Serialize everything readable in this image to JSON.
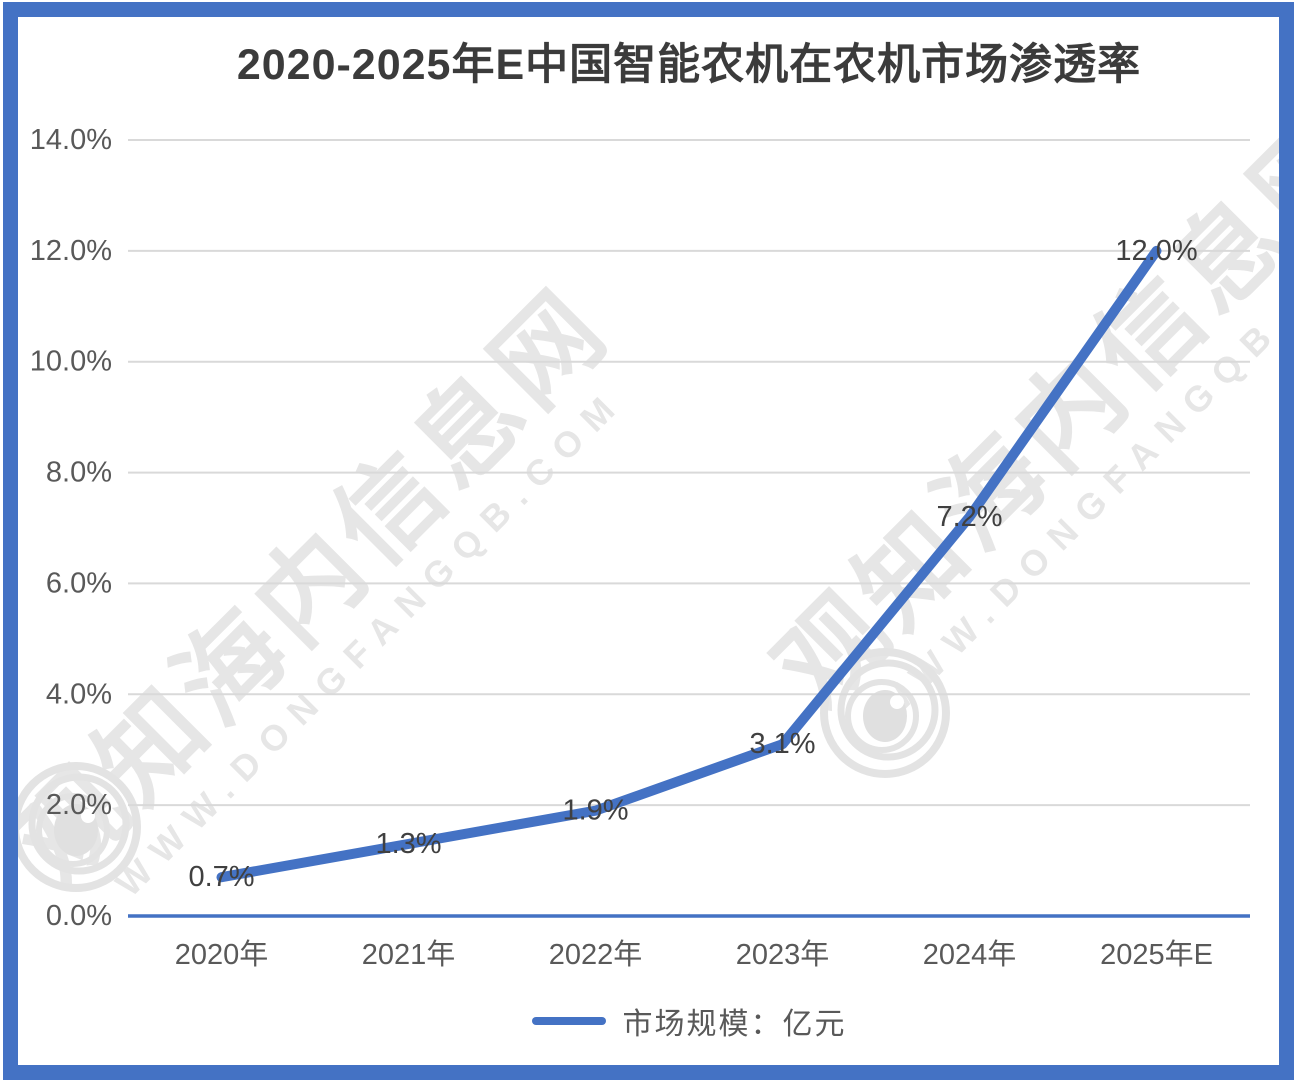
{
  "chart_data": {
    "type": "line",
    "title": "2020-2025年E中国智能农机在农机市场渗透率",
    "categories": [
      "2020年",
      "2021年",
      "2022年",
      "2023年",
      "2024年",
      "2025年E"
    ],
    "series": [
      {
        "name": "市场规模：亿元",
        "color": "#4472C4",
        "values": [
          0.7,
          1.3,
          1.9,
          3.1,
          7.2,
          12.0
        ],
        "data_labels": [
          "0.7%",
          "1.3%",
          "1.9%",
          "3.1%",
          "7.2%",
          "12.0%"
        ]
      }
    ],
    "xlabel": "",
    "ylabel": "",
    "ylim": [
      0,
      14
    ],
    "yticks": [
      {
        "value": 0,
        "label": "0.0%"
      },
      {
        "value": 2,
        "label": "2.0%"
      },
      {
        "value": 4,
        "label": "4.0%"
      },
      {
        "value": 6,
        "label": "6.0%"
      },
      {
        "value": 8,
        "label": "8.0%"
      },
      {
        "value": 10,
        "label": "10.0%"
      },
      {
        "value": 12,
        "label": "12.0%"
      },
      {
        "value": 14,
        "label": "14.0%"
      }
    ],
    "grid": true,
    "legend_position": "bottom"
  },
  "legend": {
    "label": "市场规模：亿元"
  },
  "watermark": {
    "cjk_text": "观知海内信息网",
    "latin_text": "WWW.DONGFANGQB.COM"
  },
  "colors": {
    "accent": "#4472C4",
    "frame": "#4472C4",
    "gridline": "#D9D9D9",
    "axis_text": "#595959",
    "data_label_text": "#404040",
    "title_text": "#3B3B3B",
    "watermark": "#E6E6E6"
  }
}
